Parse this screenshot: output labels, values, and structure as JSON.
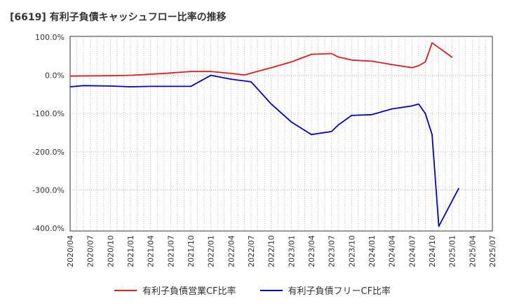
{
  "chart_data": {
    "type": "line",
    "title": "[6619]  有利子負債キャッシュフロー比率の推移",
    "x": [
      "2020/04",
      "2020/07",
      "2020/10",
      "2021/01",
      "2021/04",
      "2021/07",
      "2021/10",
      "2022/01",
      "2022/04",
      "2022/07",
      "2022/10",
      "2023/01",
      "2023/04",
      "2023/07",
      "2023/10",
      "2024/01",
      "2024/04",
      "2024/07",
      "2024/10",
      "2025/01",
      "2025/04",
      "2025/07"
    ],
    "ylim": [
      -400,
      100
    ],
    "yticks": [
      "100.0%",
      "0.0%",
      "-100.0%",
      "-200.0%",
      "-300.0%",
      "-400.0%"
    ],
    "grid": true,
    "legend_position": "bottom",
    "series": [
      {
        "name": "有利子負債営業CF比率",
        "color": "#e41a1c",
        "points": [
          [
            "2020/04",
            -2
          ],
          [
            "2020/07",
            -1.5
          ],
          [
            "2020/10",
            -1
          ],
          [
            "2021/01",
            0
          ],
          [
            "2021/04",
            3
          ],
          [
            "2021/07",
            6
          ],
          [
            "2021/10",
            10
          ],
          [
            "2022/01",
            10
          ],
          [
            "2022/04",
            5
          ],
          [
            "2022/06",
            1
          ],
          [
            "2022/10",
            20
          ],
          [
            "2023/01",
            35
          ],
          [
            "2023/04",
            55
          ],
          [
            "2023/07",
            57
          ],
          [
            "2023/08",
            48
          ],
          [
            "2023/10",
            40
          ],
          [
            "2024/01",
            37
          ],
          [
            "2024/04",
            28
          ],
          [
            "2024/07",
            20
          ],
          [
            "2024/08",
            25
          ],
          [
            "2024/09",
            35
          ],
          [
            "2024/10",
            85
          ],
          [
            "2025/01",
            47
          ]
        ]
      },
      {
        "name": "有利子負債フリーCF比率",
        "color": "#0000cc",
        "points": [
          [
            "2020/04",
            -30
          ],
          [
            "2020/06",
            -27
          ],
          [
            "2020/10",
            -28
          ],
          [
            "2021/01",
            -30
          ],
          [
            "2021/04",
            -29
          ],
          [
            "2021/07",
            -29
          ],
          [
            "2021/10",
            -29
          ],
          [
            "2022/01",
            0
          ],
          [
            "2022/04",
            -10
          ],
          [
            "2022/07",
            -17
          ],
          [
            "2022/10",
            -75
          ],
          [
            "2023/01",
            -122
          ],
          [
            "2023/04",
            -155
          ],
          [
            "2023/07",
            -147
          ],
          [
            "2023/08",
            -130
          ],
          [
            "2023/10",
            -105
          ],
          [
            "2024/01",
            -103
          ],
          [
            "2024/04",
            -88
          ],
          [
            "2024/07",
            -80
          ],
          [
            "2024/08",
            -75
          ],
          [
            "2024/09",
            -100
          ],
          [
            "2024/10",
            -155
          ],
          [
            "2024/11",
            -395
          ],
          [
            "2025/02",
            -295
          ]
        ]
      }
    ]
  }
}
